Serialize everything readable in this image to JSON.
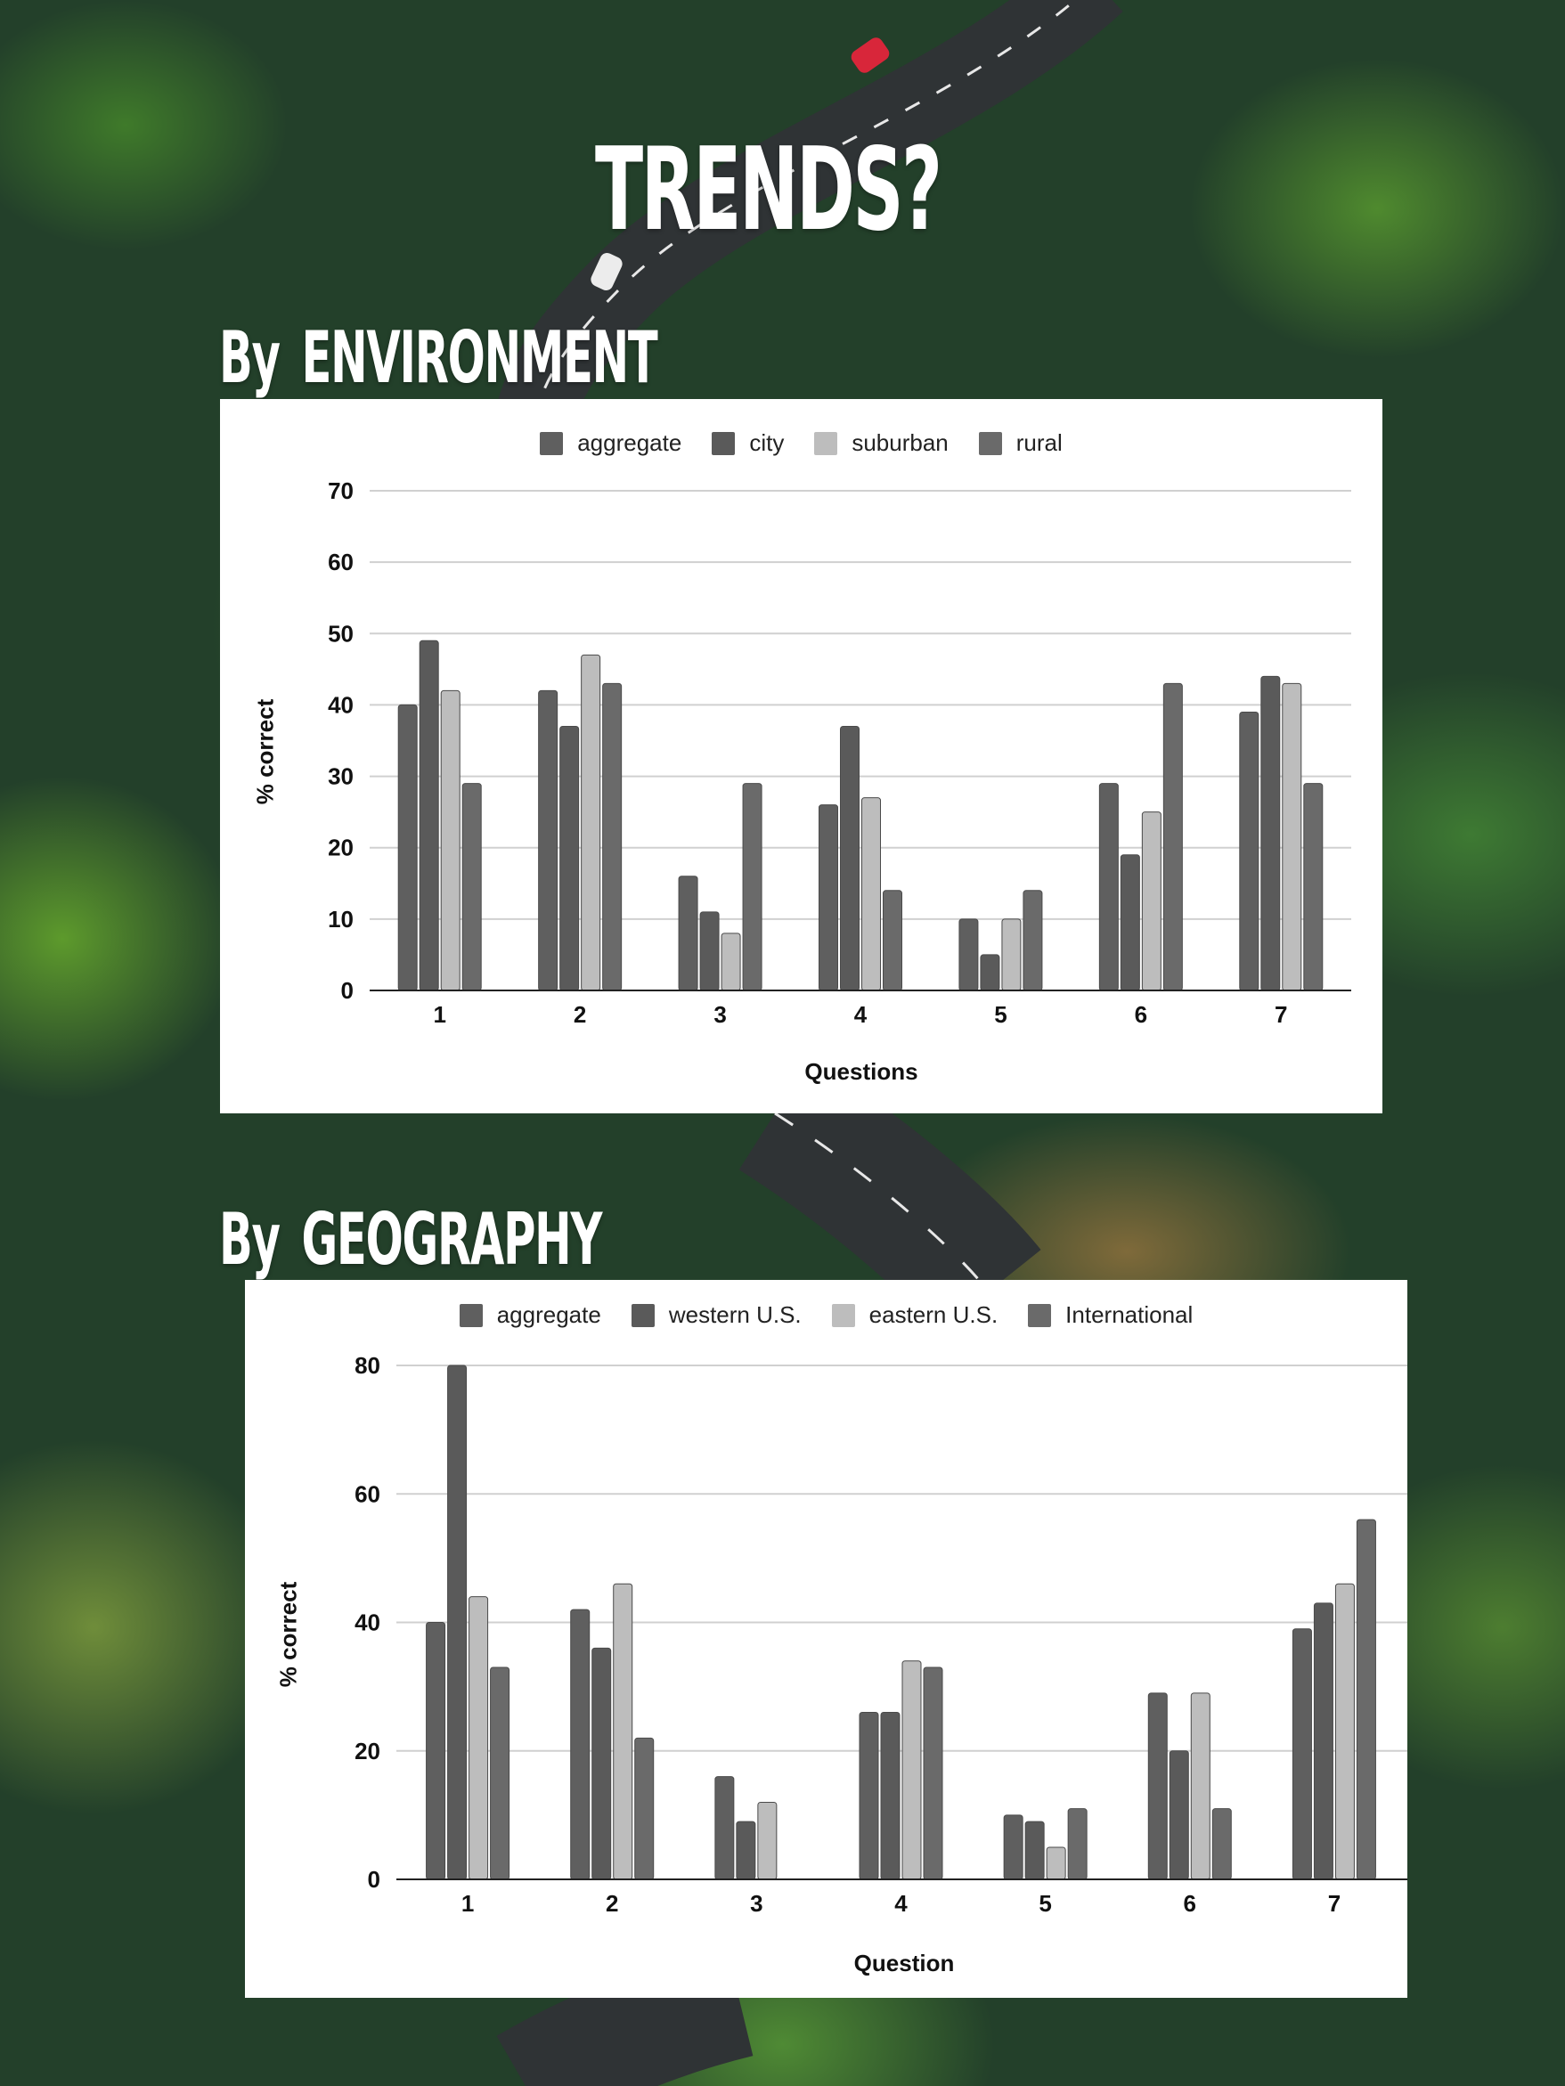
{
  "page": {
    "title": "TRENDS?"
  },
  "sections": [
    {
      "by": "By",
      "subject": "ENVIRONMENT"
    },
    {
      "by": "By",
      "subject": "GEOGRAPHY"
    }
  ],
  "colors": {
    "aggregate": "#5f5f5f",
    "second": "#5a5a5a",
    "third": "#bdbdbd",
    "fourth": "#6a6a6a",
    "grid": "#d0d0d0",
    "axis": "#222222"
  },
  "chart_data": [
    {
      "type": "bar",
      "title": "",
      "xlabel": "Questions",
      "ylabel": "% correct",
      "categories": [
        "1",
        "2",
        "3",
        "4",
        "5",
        "6",
        "7"
      ],
      "series": [
        {
          "name": "aggregate",
          "values": [
            40,
            42,
            16,
            26,
            10,
            29,
            39
          ]
        },
        {
          "name": "city",
          "values": [
            49,
            37,
            11,
            37,
            5,
            19,
            44
          ]
        },
        {
          "name": "suburban",
          "values": [
            42,
            47,
            8,
            27,
            10,
            25,
            43
          ]
        },
        {
          "name": "rural",
          "values": [
            29,
            43,
            29,
            14,
            14,
            43,
            29
          ]
        }
      ],
      "ylim": [
        0,
        70
      ],
      "yticks": [
        0,
        10,
        20,
        30,
        40,
        50,
        60,
        70
      ],
      "grid": true,
      "legend": "top-center"
    },
    {
      "type": "bar",
      "title": "",
      "xlabel": "Question",
      "ylabel": "% correct",
      "categories": [
        "1",
        "2",
        "3",
        "4",
        "5",
        "6",
        "7"
      ],
      "series": [
        {
          "name": "aggregate",
          "values": [
            40,
            42,
            16,
            26,
            10,
            29,
            39
          ]
        },
        {
          "name": "western U.S.",
          "values": [
            80,
            36,
            9,
            26,
            9,
            20,
            43
          ]
        },
        {
          "name": "eastern U.S.",
          "values": [
            44,
            46,
            12,
            34,
            5,
            29,
            46
          ]
        },
        {
          "name": "International",
          "values": [
            33,
            22,
            0,
            33,
            11,
            11,
            56
          ]
        }
      ],
      "ylim": [
        0,
        80
      ],
      "yticks": [
        0,
        20,
        40,
        60,
        80
      ],
      "grid": true,
      "legend": "top-center"
    }
  ]
}
